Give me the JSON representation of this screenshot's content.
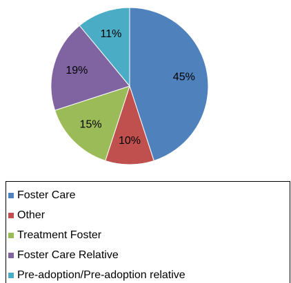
{
  "chart_data": {
    "type": "pie",
    "categories": [
      "Foster Care",
      "Other",
      "Treatment Foster",
      "Foster Care Relative",
      "Pre-adoption/Pre-adoption relative"
    ],
    "values": [
      45,
      10,
      15,
      19,
      11
    ],
    "value_labels": [
      "45%",
      "10%",
      "15%",
      "19%",
      "11%"
    ],
    "colors": [
      "#4f81bd",
      "#c0504d",
      "#9bbb59",
      "#8064a2",
      "#4bacc6"
    ]
  }
}
